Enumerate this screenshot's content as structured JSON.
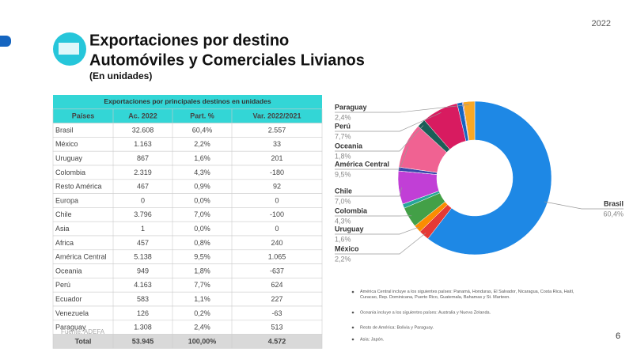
{
  "header": {
    "year": "2022",
    "title_line1": "Exportaciones por destino",
    "title_line2": "Automóviles y Comerciales Livianos",
    "subtitle": "(En unidades)"
  },
  "table": {
    "title": "Exportaciones por principales destinos en unidades",
    "columns": [
      "Países",
      "Ac. 2022",
      "Part. %",
      "Var. 2022/2021"
    ],
    "rows": [
      [
        "Brasil",
        "32.608",
        "60,4%",
        "2.557"
      ],
      [
        "México",
        "1.163",
        "2,2%",
        "33"
      ],
      [
        "Uruguay",
        "867",
        "1,6%",
        "201"
      ],
      [
        "Colombia",
        "2.319",
        "4,3%",
        "-180"
      ],
      [
        "Resto América",
        "467",
        "0,9%",
        "92"
      ],
      [
        "Europa",
        "0",
        "0,0%",
        "0"
      ],
      [
        "Chile",
        "3.796",
        "7,0%",
        "-100"
      ],
      [
        "Asia",
        "1",
        "0,0%",
        "0"
      ],
      [
        "Africa",
        "457",
        "0,8%",
        "240"
      ],
      [
        "América Central",
        "5.138",
        "9,5%",
        "1.065"
      ],
      [
        "Oceania",
        "949",
        "1,8%",
        "-637"
      ],
      [
        "Perú",
        "4.163",
        "7,7%",
        "624"
      ],
      [
        "Ecuador",
        "583",
        "1,1%",
        "227"
      ],
      [
        "Venezuela",
        "126",
        "0,2%",
        "-63"
      ],
      [
        "Paraguay",
        "1.308",
        "2,4%",
        "513"
      ]
    ],
    "total": [
      "Total",
      "53.945",
      "100,00%",
      "4.572"
    ]
  },
  "chart_data": {
    "type": "pie",
    "donut": true,
    "categories": [
      "Brasil",
      "México",
      "Uruguay",
      "Colombia",
      null,
      null,
      "Chile",
      null,
      null,
      "América Central",
      "Oceania",
      "Perú",
      null,
      null,
      "Paraguay"
    ],
    "values": [
      60.4,
      2.2,
      1.6,
      4.3,
      0.9,
      0,
      7.0,
      0,
      0.8,
      9.5,
      1.8,
      7.7,
      1.1,
      0.2,
      2.4
    ],
    "value_labels": [
      "60,4%",
      "2,2%",
      "1,6%",
      "4,3%",
      null,
      null,
      "7,0%",
      null,
      null,
      "9,5%",
      "1,8%",
      "7,7%",
      null,
      null,
      "2,4%"
    ],
    "colors": [
      "#1e88e5",
      "#e53935",
      "#fb8c00",
      "#43a047",
      "#26a69a",
      "#9e9e9e",
      "#c13fd6",
      "#757575",
      "#3949ab",
      "#f06292",
      "#1b5e57",
      "#d81b60",
      "#1565c0",
      "#7e57c2",
      "#f9a825"
    ]
  },
  "notes": [
    "América Central incluye a los siguientes países: Panamá, Honduras, El Salvador, Nicaragua, Costa Rica, Haití, Curacao, Rep. Dominicana, Puerto Rico, Guatemala, Bahamas y St. Marteen.",
    "Oceania incluye a los siguientes países: Australia y Nueva Zelanda.",
    "Resto de América: Bolivia y Paraguay.",
    "Asia: Japón."
  ],
  "footer": {
    "source": "Fuente: ADEFA",
    "page": "6"
  }
}
